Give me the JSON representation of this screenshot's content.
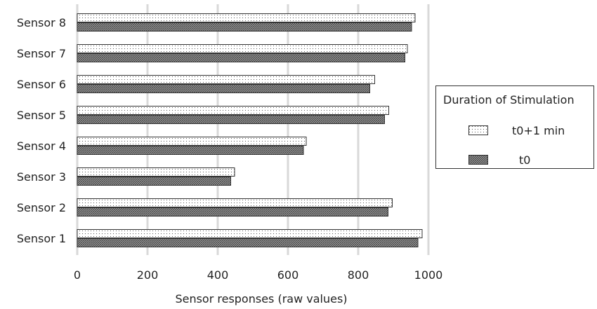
{
  "chart_data": {
    "type": "bar",
    "orientation": "horizontal",
    "categories": [
      "Sensor 1",
      "Sensor 2",
      "Sensor 3",
      "Sensor 4",
      "Sensor 5",
      "Sensor 6",
      "Sensor 7",
      "Sensor 8"
    ],
    "series": [
      {
        "name": "t0+1 min",
        "pattern": "dotted",
        "color": "#ffffff",
        "values": [
          982,
          897,
          448,
          652,
          887,
          847,
          940,
          962
        ]
      },
      {
        "name": "t0",
        "pattern": "hatched",
        "color": "#6e6e6e",
        "values": [
          970,
          885,
          437,
          644,
          875,
          833,
          933,
          952
        ]
      }
    ],
    "xlabel": "Sensor responses (raw values)",
    "ylabel": "",
    "xlim": [
      0,
      1000
    ],
    "x_ticks": [
      "0",
      "200",
      "400",
      "600",
      "800",
      "1000"
    ],
    "grid": "vertical",
    "legend": {
      "title": "Duration of Stimulation",
      "placement": "right"
    }
  }
}
